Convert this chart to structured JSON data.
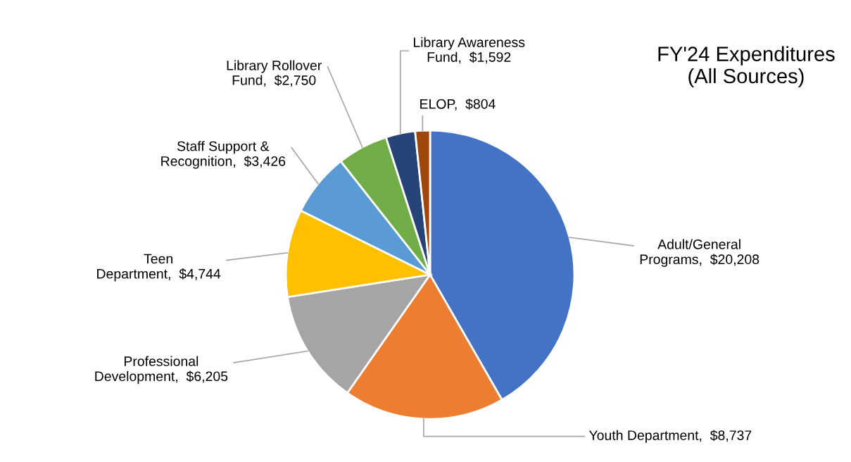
{
  "chart_data": {
    "type": "pie",
    "title": "FY'24 Expenditures\n(All Sources)",
    "categories": [
      "Adult/General\nPrograms",
      "Youth Department",
      "Professional\nDevelopment",
      "Teen\nDepartment",
      "Staff Support &\nRecognition",
      "Library Rollover\nFund",
      "Library Awareness\nFund",
      "ELOP"
    ],
    "values": [
      20208,
      8737,
      6205,
      4744,
      3426,
      2750,
      1592,
      804
    ],
    "value_labels": [
      "$20,208",
      "$8,737",
      "$6,205",
      "$4,744",
      "$3,426",
      "$2,750",
      "$1,592",
      "$804"
    ],
    "colors": [
      "#4472c4",
      "#ed7d31",
      "#a5a5a5",
      "#ffc000",
      "#5b9bd5",
      "#70ad47",
      "#264478",
      "#9e480e"
    ],
    "legend": false
  }
}
